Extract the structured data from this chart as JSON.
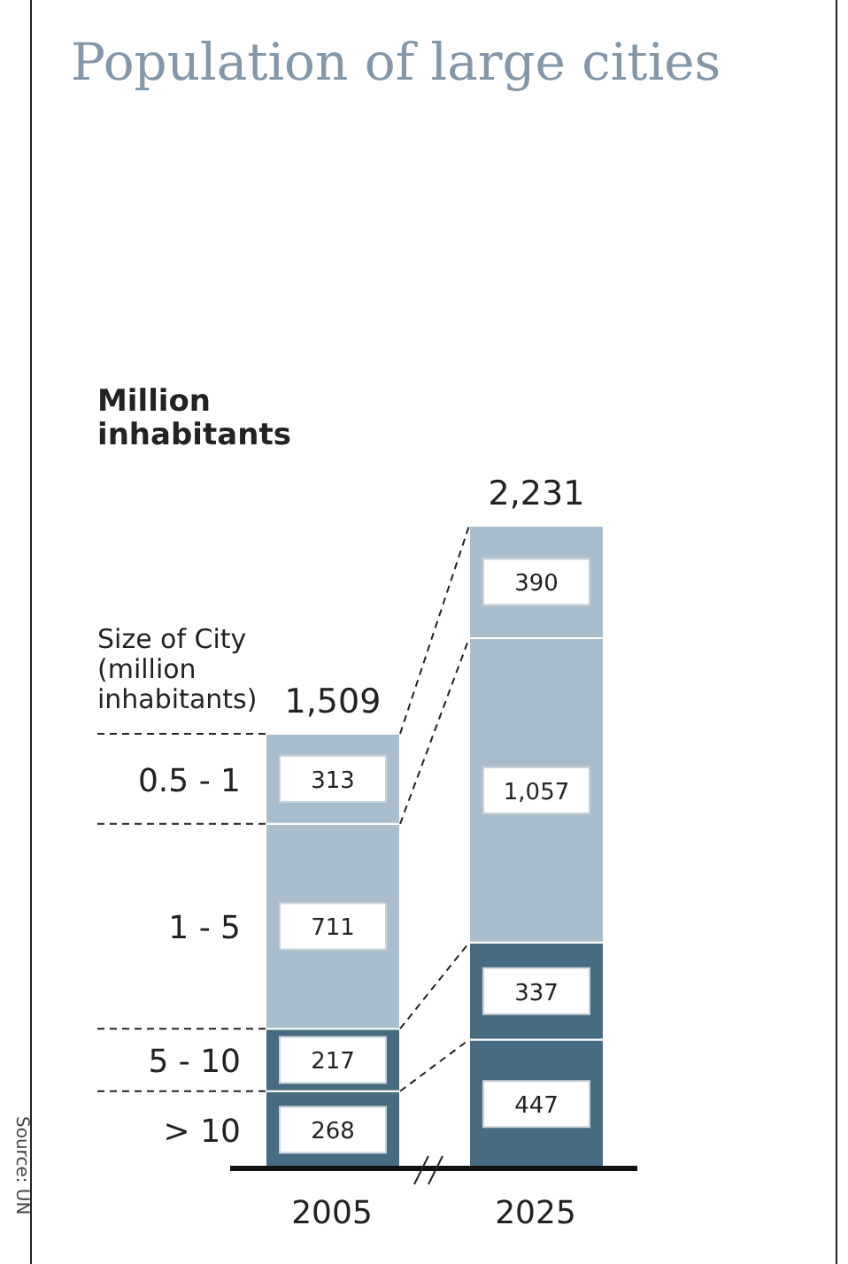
{
  "chart_data": {
    "type": "bar",
    "title": "Population of large cities",
    "ylabel": "Million inhabitants",
    "legend_title": "Size of City (million inhabitants)",
    "categories": [
      "2005",
      "2025"
    ],
    "stacked": true,
    "totals": [
      "1,509",
      "2,231"
    ],
    "tick_labels": "x",
    "annotations": [
      "Source: UN"
    ],
    "series": [
      {
        "name": "> 10",
        "color": "#476b80",
        "values": [
          268,
          447
        ],
        "value_labels": [
          "268",
          "447"
        ]
      },
      {
        "name": "5 - 10",
        "color": "#476b80",
        "values": [
          217,
          337
        ],
        "value_labels": [
          "217",
          "337"
        ]
      },
      {
        "name": "1 - 5",
        "color": "#aabdcc",
        "values": [
          711,
          1057
        ],
        "value_labels": [
          "711",
          "1,057"
        ]
      },
      {
        "name": "0.5 - 1",
        "color": "#aabdcc",
        "values": [
          313,
          390
        ],
        "value_labels": [
          "313",
          "390"
        ]
      }
    ]
  }
}
